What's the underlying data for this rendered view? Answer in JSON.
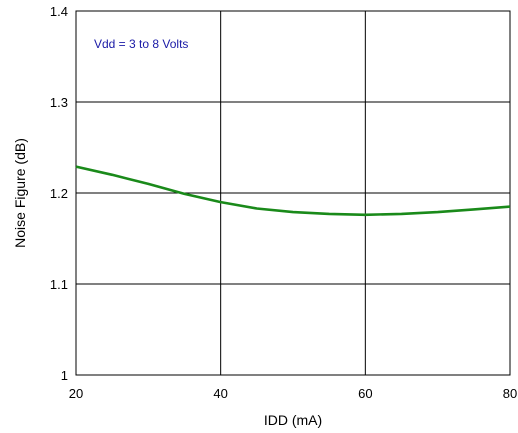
{
  "chart_data": {
    "type": "line",
    "title": "",
    "xlabel": "IDD (mA)",
    "ylabel": "Noise Figure (dB)",
    "xlim": [
      20,
      80
    ],
    "ylim": [
      1.0,
      1.4
    ],
    "x_ticks": [
      "20",
      "40",
      "60",
      "80"
    ],
    "y_ticks": [
      "1",
      "1.1",
      "1.2",
      "1.3",
      "1.4"
    ],
    "x_tick_values": [
      20,
      40,
      60,
      80
    ],
    "y_tick_values": [
      1.0,
      1.1,
      1.2,
      1.3,
      1.4
    ],
    "grid": true,
    "legend": "none",
    "annotation": "Vdd = 3 to 8 Volts",
    "series": [
      {
        "color": "#1a8a1a",
        "x": [
          20,
          25,
          30,
          35,
          40,
          45,
          50,
          55,
          60,
          65,
          70,
          75,
          80
        ],
        "y": [
          1.229,
          1.22,
          1.21,
          1.199,
          1.19,
          1.183,
          1.179,
          1.177,
          1.176,
          1.177,
          1.179,
          1.182,
          1.185
        ]
      }
    ]
  },
  "colors": {
    "plot_border": "#000000",
    "annotation_text": "#1a1aa6",
    "series_line": "#1a8a1a"
  }
}
